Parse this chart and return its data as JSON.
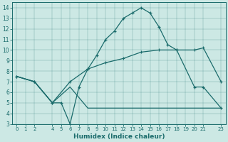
{
  "xlabel": "Humidex (Indice chaleur)",
  "bg_color": "#cce8e4",
  "line_color": "#1a6b6b",
  "xlim": [
    -0.5,
    23.5
  ],
  "ylim": [
    3,
    14.5
  ],
  "xticks": [
    0,
    1,
    2,
    4,
    5,
    6,
    7,
    8,
    9,
    10,
    11,
    12,
    13,
    14,
    15,
    16,
    17,
    18,
    19,
    20,
    21,
    23
  ],
  "yticks": [
    3,
    4,
    5,
    6,
    7,
    8,
    9,
    10,
    11,
    12,
    13,
    14
  ],
  "line1_x": [
    0,
    2,
    4,
    5,
    6,
    7,
    8,
    9,
    10,
    11,
    12,
    13,
    14,
    15,
    16,
    17,
    18,
    20,
    21,
    23
  ],
  "line1_y": [
    7.5,
    7.0,
    5.0,
    5.0,
    3.0,
    6.5,
    8.2,
    9.5,
    11.0,
    11.8,
    13.0,
    13.5,
    14.0,
    13.5,
    12.2,
    10.5,
    10.0,
    6.5,
    6.5,
    4.5
  ],
  "line2_x": [
    0,
    2,
    4,
    6,
    8,
    10,
    12,
    14,
    16,
    18,
    20,
    21,
    23
  ],
  "line2_y": [
    7.5,
    7.0,
    5.0,
    7.0,
    8.2,
    8.8,
    9.2,
    9.8,
    10.0,
    10.0,
    10.0,
    10.2,
    7.0
  ],
  "line3_x": [
    0,
    2,
    4,
    6,
    8,
    10,
    12,
    14,
    16,
    18,
    20,
    21,
    23
  ],
  "line3_y": [
    7.5,
    7.0,
    5.0,
    6.5,
    4.5,
    4.5,
    4.5,
    4.5,
    4.5,
    4.5,
    4.5,
    4.5,
    4.5
  ]
}
